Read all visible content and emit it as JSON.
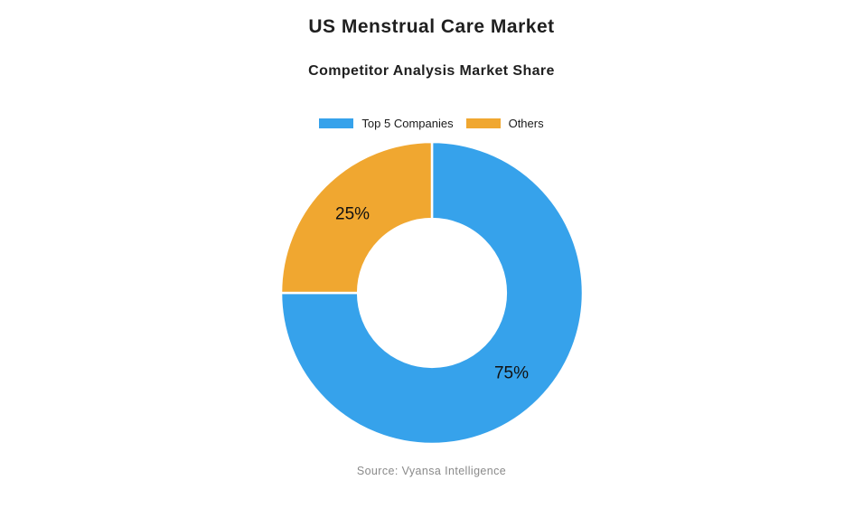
{
  "chart_data": {
    "type": "pie",
    "variant": "donut",
    "title": "US Menstrual Care Market",
    "subtitle": "Competitor Analysis Market Share",
    "source": "Source: Vyansa Intelligence",
    "legend_position": "top",
    "direction": "clockwise",
    "start_angle_deg": -90,
    "inner_radius_ratio": 0.49,
    "segments": [
      {
        "label": "Top 5 Companies",
        "value": 75,
        "display_label": "75%",
        "color": "#36A2EB"
      },
      {
        "label": "Others",
        "value": 25,
        "display_label": "25%",
        "color": "#F0A730"
      }
    ],
    "slice_label_color": "#111111",
    "slice_border_color": "#FFFFFF"
  },
  "styles": {
    "background": "#FFFFFF",
    "title_color": "#1F1F1F",
    "legend_text_color": "#1A1A1A",
    "source_color": "#8A8A8A"
  }
}
